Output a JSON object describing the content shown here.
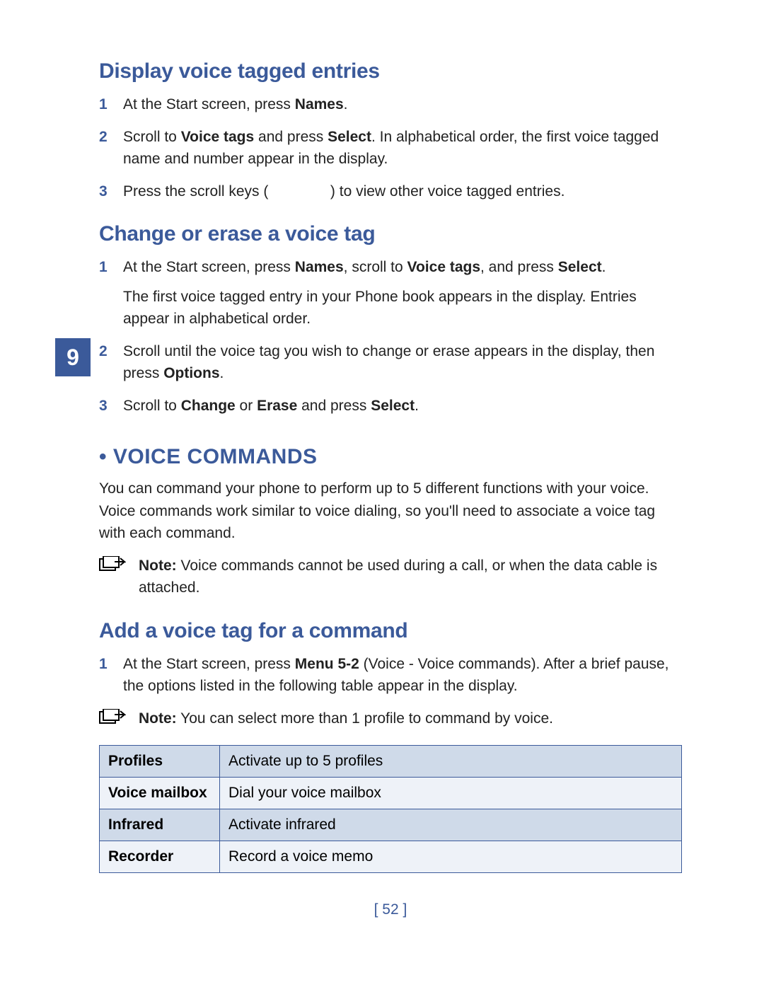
{
  "chapter_number": "9",
  "page_number": "[ 52 ]",
  "colors": {
    "heading": "#3b5a9a",
    "tab_bg": "#3b5a9a",
    "tab_text": "#ffffff",
    "table_border": "#3b5a9a",
    "table_row_odd": "#cfdae9",
    "table_row_even": "#eef2f8",
    "body_text": "#222222"
  },
  "sections": {
    "display_entries": {
      "title": "Display voice tagged entries",
      "steps": [
        {
          "num": "1",
          "html": "At the Start screen, press <b>Names</b>."
        },
        {
          "num": "2",
          "html": "Scroll to <b>Voice tags</b> and press <b>Select</b>. In alphabetical order, the first voice tagged name and number appear in the display."
        },
        {
          "num": "3",
          "html": "Press the scroll keys (&nbsp;&nbsp;&nbsp;&nbsp;&nbsp;&nbsp;&nbsp;&nbsp;&nbsp;&nbsp;&nbsp;&nbsp;&nbsp;&nbsp;&nbsp;) to view other voice tagged entries."
        }
      ]
    },
    "change_erase": {
      "title": "Change or erase a voice tag",
      "steps": [
        {
          "num": "1",
          "html": "At the Start screen, press <b>Names</b>, scroll to <b>Voice tags</b>, and press <b>Select</b>.",
          "extra_html": "The first voice tagged entry in your Phone book appears in the display. Entries appear in alphabetical order."
        },
        {
          "num": "2",
          "html": "Scroll until the voice tag you wish to change or erase appears in the display, then press <b>Options</b>."
        },
        {
          "num": "3",
          "html": "Scroll to <b>Change</b> or <b>Erase</b> and press <b>Select</b>."
        }
      ]
    },
    "voice_commands": {
      "title": "VOICE COMMANDS",
      "intro_html": "You can command your phone to perform up to 5 different functions with your voice. Voice commands work similar to voice dialing, so you'll need to associate a voice tag with each command.",
      "note_html": "<b>Note:</b> Voice commands cannot be used during a call, or when the data cable is attached."
    },
    "add_voice_tag": {
      "title": "Add a voice tag for a command",
      "steps": [
        {
          "num": "1",
          "html": "At the Start screen, press <b>Menu 5-2</b> (Voice - Voice commands). After a brief pause, the options listed in the following table appear in the display."
        }
      ],
      "note_html": "<b>Note:</b> You can select more than 1 profile to command by voice.",
      "table": {
        "rows": [
          {
            "label": "Profiles",
            "desc": "Activate up to 5 profiles"
          },
          {
            "label": "Voice mailbox",
            "desc": "Dial your voice mailbox"
          },
          {
            "label": "Infrared",
            "desc": "Activate infrared"
          },
          {
            "label": "Recorder",
            "desc": "Record a voice memo"
          }
        ]
      }
    }
  }
}
